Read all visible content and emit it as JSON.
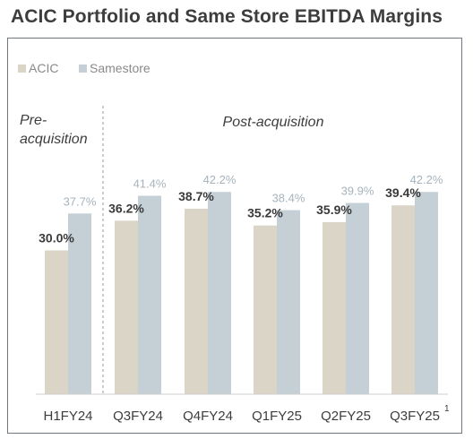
{
  "page": {
    "title": "ACIC Portfolio and Same Store EBITDA Margins"
  },
  "legend": {
    "items": [
      {
        "label": "ACIC",
        "color": "#dbd5c8"
      },
      {
        "label": "Samestore",
        "color": "#c4cfd6"
      }
    ]
  },
  "annotations": {
    "pre_line1": "Pre-",
    "pre_line2": "acquisition",
    "post": "Post-acquisition",
    "footnote_marker": "1"
  },
  "colors": {
    "acic": "#dbd5c8",
    "samestore": "#c4cfd6",
    "acic_label": "#3a3a3a",
    "samestore_label": "#a7b3bc",
    "axis": "#cfcfcf",
    "divider": "#9a9a9a",
    "frame": "#6f7781",
    "text": "#3d3d3d"
  },
  "chart_data": {
    "type": "bar",
    "title": "ACIC Portfolio and Same Store EBITDA Margins",
    "categories": [
      "H1FY24",
      "Q3FY24",
      "Q4FY24",
      "Q1FY25",
      "Q2FY25",
      "Q3FY25"
    ],
    "series": [
      {
        "name": "ACIC",
        "values": [
          30.0,
          36.2,
          38.7,
          35.2,
          35.9,
          39.4
        ],
        "labels": [
          "30.0%",
          "36.2%",
          "38.7%",
          "35.2%",
          "35.9%",
          "39.4%"
        ]
      },
      {
        "name": "Samestore",
        "values": [
          37.7,
          41.4,
          42.2,
          38.4,
          39.9,
          42.2
        ],
        "labels": [
          "37.7%",
          "41.4%",
          "42.2%",
          "38.4%",
          "39.9%",
          "42.2%"
        ]
      }
    ],
    "xlabel": "",
    "ylabel": "",
    "grid": false,
    "legend": "top-left"
  }
}
